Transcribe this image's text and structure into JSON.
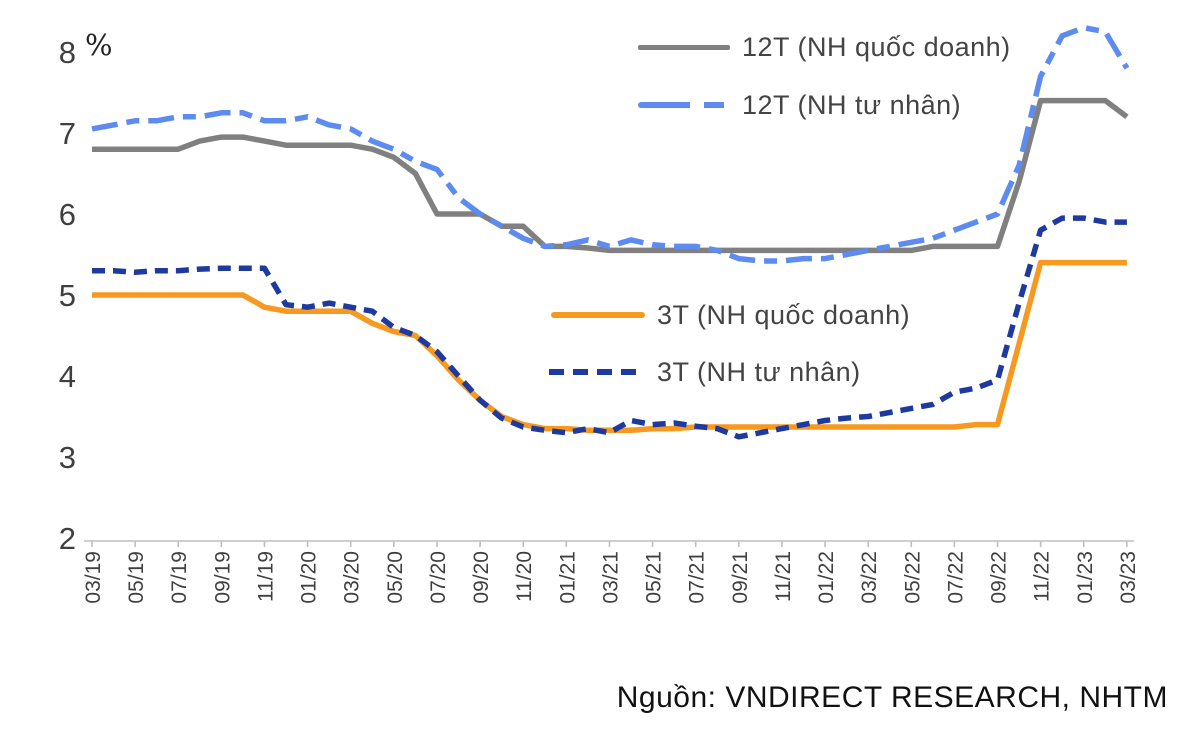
{
  "page": {
    "background": "#ffffff"
  },
  "colors": {
    "series_12t_state": "#808080",
    "series_12t_private": "#5E8BF0",
    "series_3t_state": "#F7991E",
    "series_3t_private": "#1E3A9E",
    "axis": "#BFBFBF",
    "tick_label": "#404040",
    "legend_label": "#444444",
    "source_text": "#111111"
  },
  "y_axis_unit": "%",
  "source_text": "Nguồn: VNDIRECT RESEARCH, NHTM",
  "legend": {
    "items": [
      {
        "label": "12T (NH quốc doanh)",
        "color": "#808080",
        "style": "solid"
      },
      {
        "label": "12T (NH tư nhân)",
        "color": "#5E8BF0",
        "style": "long-dash"
      },
      {
        "label": "3T (NH quốc doanh)",
        "color": "#F7991E",
        "style": "solid"
      },
      {
        "label": "3T (NH tư nhân)",
        "color": "#1E3A9E",
        "style": "dash"
      }
    ]
  },
  "chart_data": {
    "type": "line",
    "title": "",
    "xlabel": "",
    "ylabel": "%",
    "ylim": [
      2,
      8
    ],
    "yticks": [
      2,
      3,
      4,
      5,
      6,
      7,
      8
    ],
    "grid": false,
    "legend_position": "inside-plot",
    "x_tick_every": 2,
    "x": [
      "03/19",
      "04/19",
      "05/19",
      "06/19",
      "07/19",
      "08/19",
      "09/19",
      "10/19",
      "11/19",
      "12/19",
      "01/20",
      "02/20",
      "03/20",
      "04/20",
      "05/20",
      "06/20",
      "07/20",
      "08/20",
      "09/20",
      "10/20",
      "11/20",
      "12/20",
      "01/21",
      "02/21",
      "03/21",
      "04/21",
      "05/21",
      "06/21",
      "07/21",
      "08/21",
      "09/21",
      "10/21",
      "11/21",
      "12/21",
      "01/22",
      "02/22",
      "03/22",
      "04/22",
      "05/22",
      "06/22",
      "07/22",
      "08/22",
      "09/22",
      "10/22",
      "11/22",
      "12/22",
      "01/23",
      "02/23",
      "03/23"
    ],
    "series": [
      {
        "id": "12t-state",
        "name": "12T (NH quốc doanh)",
        "color": "#808080",
        "line_style": "solid",
        "values": [
          6.8,
          6.8,
          6.8,
          6.8,
          6.8,
          6.9,
          6.95,
          6.95,
          6.9,
          6.85,
          6.85,
          6.85,
          6.85,
          6.8,
          6.7,
          6.5,
          6.0,
          6.0,
          6.0,
          5.85,
          5.85,
          5.6,
          5.6,
          5.58,
          5.55,
          5.55,
          5.55,
          5.55,
          5.55,
          5.55,
          5.55,
          5.55,
          5.55,
          5.55,
          5.55,
          5.55,
          5.55,
          5.55,
          5.55,
          5.6,
          5.6,
          5.6,
          5.6,
          6.4,
          7.4,
          7.4,
          7.4,
          7.4,
          7.2
        ]
      },
      {
        "id": "12t-private",
        "name": "12T (NH tư nhân)",
        "color": "#5E8BF0",
        "line_style": "long-dash",
        "values": [
          7.05,
          7.1,
          7.15,
          7.15,
          7.2,
          7.2,
          7.25,
          7.25,
          7.15,
          7.15,
          7.2,
          7.1,
          7.05,
          6.9,
          6.8,
          6.65,
          6.55,
          6.2,
          6.0,
          5.85,
          5.7,
          5.6,
          5.62,
          5.68,
          5.6,
          5.68,
          5.62,
          5.6,
          5.6,
          5.55,
          5.45,
          5.42,
          5.42,
          5.45,
          5.45,
          5.5,
          5.55,
          5.6,
          5.65,
          5.7,
          5.8,
          5.9,
          6.0,
          6.6,
          7.7,
          8.2,
          8.3,
          8.25,
          7.8
        ]
      },
      {
        "id": "3t-state",
        "name": "3T (NH quốc doanh)",
        "color": "#F7991E",
        "line_style": "solid",
        "values": [
          5.0,
          5.0,
          5.0,
          5.0,
          5.0,
          5.0,
          5.0,
          5.0,
          4.85,
          4.8,
          4.8,
          4.8,
          4.8,
          4.65,
          4.55,
          4.5,
          4.25,
          3.95,
          3.7,
          3.5,
          3.4,
          3.35,
          3.35,
          3.33,
          3.33,
          3.33,
          3.35,
          3.35,
          3.37,
          3.37,
          3.37,
          3.37,
          3.37,
          3.37,
          3.37,
          3.37,
          3.37,
          3.37,
          3.37,
          3.37,
          3.37,
          3.4,
          3.4,
          4.4,
          5.4,
          5.4,
          5.4,
          5.4,
          5.4
        ]
      },
      {
        "id": "3t-private",
        "name": "3T (NH tư nhân)",
        "color": "#1E3A9E",
        "line_style": "dash",
        "values": [
          5.3,
          5.3,
          5.28,
          5.3,
          5.3,
          5.32,
          5.33,
          5.33,
          5.33,
          4.88,
          4.85,
          4.9,
          4.85,
          4.8,
          4.6,
          4.5,
          4.3,
          4.0,
          3.7,
          3.48,
          3.37,
          3.33,
          3.3,
          3.35,
          3.3,
          3.45,
          3.4,
          3.42,
          3.38,
          3.35,
          3.25,
          3.3,
          3.35,
          3.4,
          3.45,
          3.48,
          3.5,
          3.55,
          3.6,
          3.65,
          3.8,
          3.85,
          3.95,
          4.9,
          5.8,
          5.95,
          5.95,
          5.9,
          5.9
        ]
      }
    ]
  }
}
